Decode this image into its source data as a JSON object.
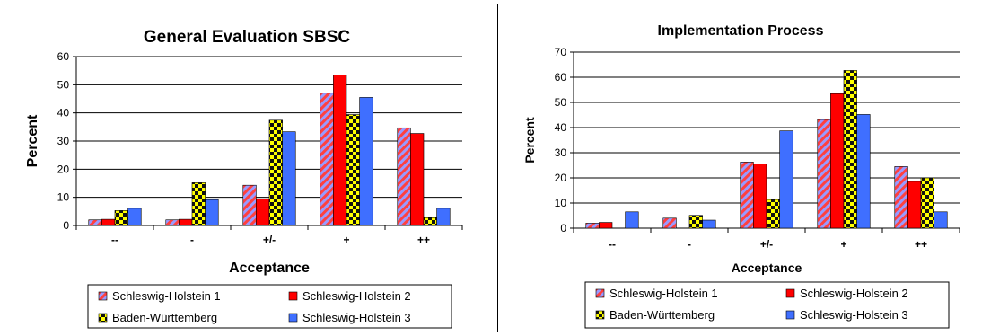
{
  "charts": [
    {
      "chart_data": {
        "type": "bar",
        "title": "General Evaluation SBSC",
        "xlabel": "Acceptance",
        "ylabel": "Percent",
        "categories": [
          "--",
          "-",
          "+/-",
          "+",
          "++"
        ],
        "ylim": [
          0,
          60
        ],
        "yticks": [
          0,
          10,
          20,
          30,
          40,
          50,
          60
        ],
        "grid": true,
        "legend_position": "bottom",
        "series": [
          {
            "name": "Schleswig-Holstein 1",
            "values": [
              2,
              2,
              14.3,
              47,
              34.7
            ],
            "pattern": "hatch-blue-red"
          },
          {
            "name": "Schleswig-Holstein 2",
            "values": [
              2.2,
              2.2,
              9.5,
              53.5,
              32.7
            ],
            "pattern": "solid-red"
          },
          {
            "name": "Baden-Württemberg",
            "values": [
              5.3,
              15.2,
              37.4,
              39.4,
              2.8
            ],
            "pattern": "checker-black-yellow"
          },
          {
            "name": "Schleswig-Holstein 3",
            "values": [
              6.1,
              9.2,
              33.3,
              45.5,
              6.1
            ],
            "pattern": "solid-blue"
          }
        ]
      }
    },
    {
      "chart_data": {
        "type": "bar",
        "title": "Implementation Process",
        "xlabel": "Acceptance",
        "ylabel": "Percent",
        "categories": [
          "--",
          "-",
          "+/-",
          "+",
          "++"
        ],
        "ylim": [
          0,
          70
        ],
        "yticks": [
          0,
          10,
          20,
          30,
          40,
          50,
          60,
          70
        ],
        "grid": true,
        "legend_position": "bottom",
        "series": [
          {
            "name": "Schleswig-Holstein 1",
            "values": [
              2,
              4,
              26.3,
              43.2,
              24.5
            ],
            "pattern": "hatch-blue-red"
          },
          {
            "name": "Schleswig-Holstein 2",
            "values": [
              2.3,
              0,
              25.6,
              53.5,
              18.6
            ],
            "pattern": "solid-red"
          },
          {
            "name": "Baden-Württemberg",
            "values": [
              0,
              5.1,
              11.4,
              62.7,
              20
            ],
            "pattern": "checker-yellow-black"
          },
          {
            "name": "Schleswig-Holstein 3",
            "values": [
              6.5,
              3.2,
              38.7,
              45.2,
              6.5
            ],
            "pattern": "solid-blue"
          }
        ]
      }
    }
  ]
}
